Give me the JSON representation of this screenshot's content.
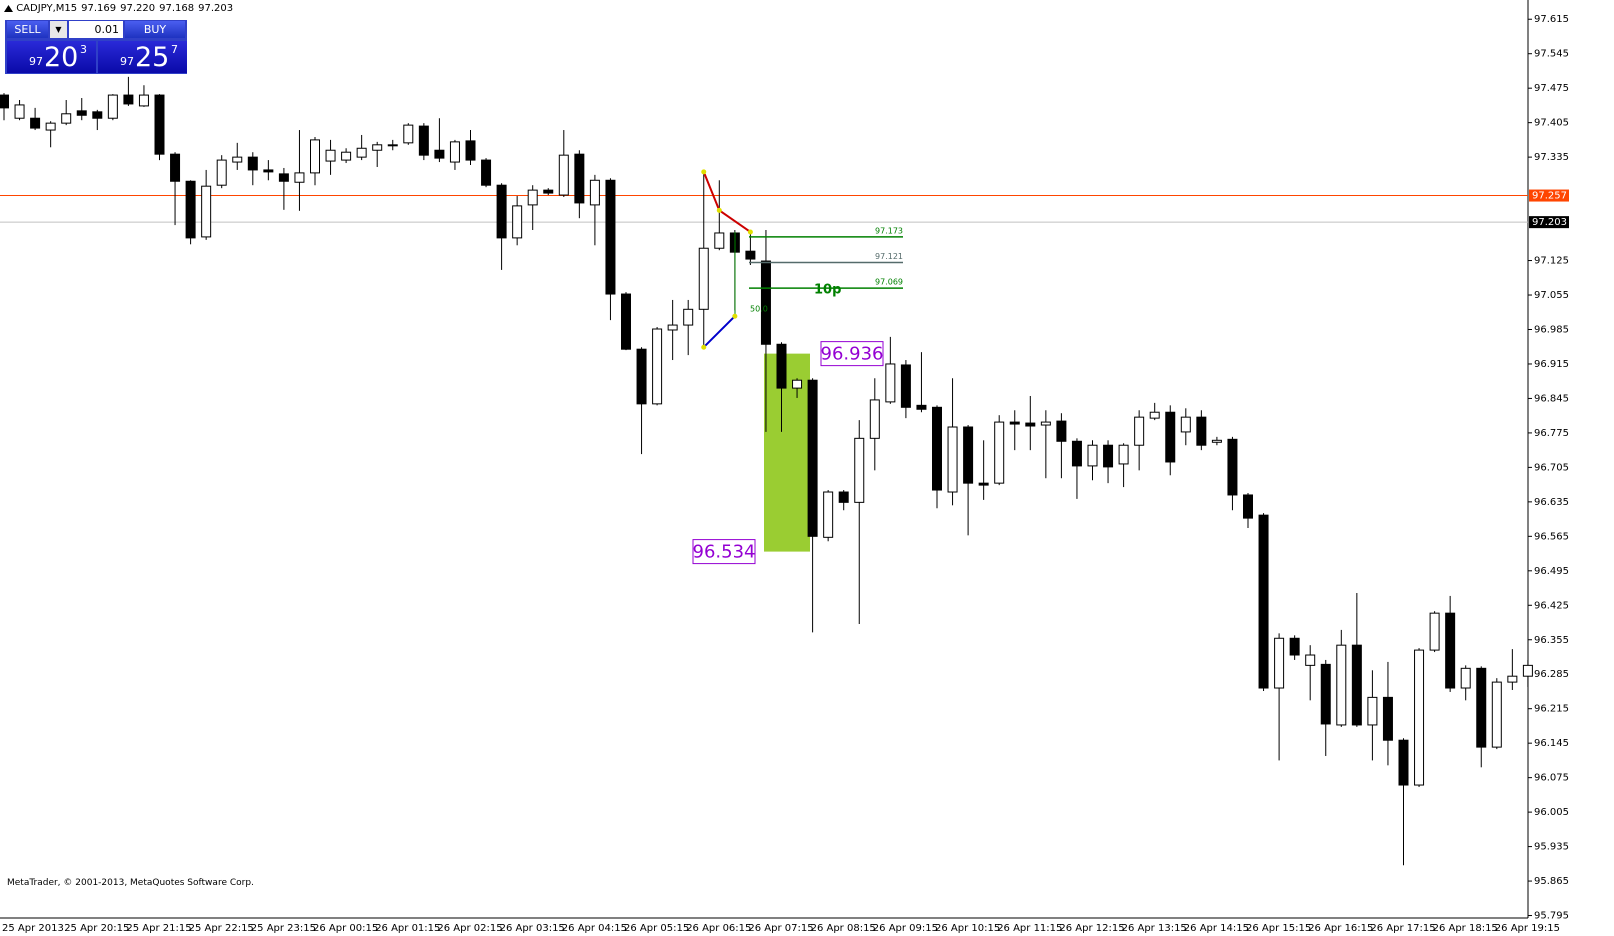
{
  "chart_data": {
    "type": "candlestick",
    "title": "CADJPY,M15",
    "quote": [
      "97.169",
      "97.220",
      "97.168",
      "97.203"
    ],
    "categories": [
      "25 Apr 2013",
      null,
      null,
      null,
      "25 Apr 20:15",
      null,
      null,
      null,
      "25 Apr 21:15",
      null,
      null,
      null,
      "25 Apr 22:15",
      null,
      null,
      null,
      "25 Apr 23:15",
      null,
      null,
      null,
      "26 Apr 00:15",
      null,
      null,
      null,
      "26 Apr 01:15",
      null,
      null,
      null,
      "26 Apr 02:15",
      null,
      null,
      null,
      "26 Apr 03:15",
      null,
      null,
      null,
      "26 Apr 04:15",
      null,
      null,
      null,
      "26 Apr 05:15",
      null,
      null,
      null,
      "26 Apr 06:15",
      null,
      null,
      null,
      "26 Apr 07:15",
      null,
      null,
      null,
      "26 Apr 08:15",
      null,
      null,
      null,
      "26 Apr 09:15",
      null,
      null,
      null,
      "26 Apr 10:15",
      null,
      null,
      null,
      "26 Apr 11:15",
      null,
      null,
      null,
      "26 Apr 12:15",
      null,
      null,
      null,
      "26 Apr 13:15",
      null,
      null,
      null,
      "26 Apr 14:15",
      null,
      null,
      null,
      "26 Apr 15:15",
      null,
      null,
      null,
      "26 Apr 16:15",
      null,
      null,
      null,
      "26 Apr 17:15",
      null,
      null,
      null,
      "26 Apr 18:15",
      null,
      null,
      null,
      "26 Apr 19:15",
      null,
      null
    ],
    "open": [
      97.461,
      97.414,
      97.414,
      97.39,
      97.404,
      97.429,
      97.427,
      97.414,
      97.461,
      97.439,
      97.461,
      97.341,
      97.286,
      97.173,
      97.278,
      97.325,
      97.335,
      97.309,
      97.301,
      97.284,
      97.303,
      97.327,
      97.329,
      97.335,
      97.349,
      97.358,
      97.364,
      97.398,
      97.349,
      97.325,
      97.368,
      97.329,
      97.278,
      97.171,
      97.238,
      97.268,
      97.258,
      97.341,
      97.238,
      97.288,
      97.057,
      96.945,
      96.834,
      96.984,
      96.994,
      97.026,
      97.15,
      97.181,
      97.144,
      97.124,
      96.955,
      96.866,
      96.882,
      96.563,
      96.655,
      96.634,
      96.764,
      96.838,
      96.913,
      96.831,
      96.827,
      96.655,
      96.787,
      96.673,
      96.673,
      96.797,
      96.795,
      96.791,
      96.799,
      96.758,
      96.708,
      96.75,
      96.712,
      96.75,
      96.805,
      96.817,
      96.777,
      96.807,
      96.756,
      96.762,
      96.649,
      96.608,
      96.257,
      96.358,
      96.303,
      96.305,
      96.182,
      96.344,
      96.182,
      96.238,
      96.151,
      96.06,
      96.334,
      96.409,
      96.257,
      96.297,
      96.137,
      96.269,
      96.281
    ],
    "high": [
      97.465,
      97.451,
      97.435,
      97.408,
      97.451,
      97.455,
      97.431,
      97.463,
      97.498,
      97.481,
      97.463,
      97.345,
      97.288,
      97.309,
      97.339,
      97.364,
      97.345,
      97.329,
      97.313,
      97.39,
      97.376,
      97.37,
      97.353,
      97.38,
      97.366,
      97.37,
      97.404,
      97.404,
      97.414,
      97.37,
      97.39,
      97.333,
      97.282,
      97.256,
      97.278,
      97.272,
      97.39,
      97.349,
      97.299,
      97.292,
      97.061,
      96.949,
      96.99,
      97.045,
      97.045,
      97.309,
      97.288,
      97.187,
      97.183,
      97.187,
      96.959,
      96.886,
      96.886,
      96.659,
      96.659,
      96.801,
      96.886,
      96.97,
      96.923,
      96.939,
      96.831,
      96.886,
      96.791,
      96.76,
      96.811,
      96.821,
      96.85,
      96.821,
      96.815,
      96.764,
      96.76,
      96.76,
      96.754,
      96.821,
      96.836,
      96.831,
      96.825,
      96.821,
      96.767,
      96.767,
      96.653,
      96.612,
      96.368,
      96.364,
      96.344,
      96.314,
      96.375,
      96.45,
      96.293,
      96.31,
      96.155,
      96.338,
      96.413,
      96.444,
      96.303,
      96.301,
      96.277,
      96.336,
      96.314
    ],
    "low": [
      97.41,
      97.41,
      97.39,
      97.355,
      97.4,
      97.41,
      97.39,
      97.41,
      97.439,
      97.437,
      97.329,
      97.197,
      97.158,
      97.167,
      97.272,
      97.309,
      97.278,
      97.288,
      97.228,
      97.226,
      97.278,
      97.299,
      97.323,
      97.329,
      97.315,
      97.349,
      97.36,
      97.329,
      97.325,
      97.309,
      97.319,
      97.274,
      97.106,
      97.156,
      97.187,
      97.258,
      97.254,
      97.211,
      97.156,
      97.004,
      96.943,
      96.732,
      96.831,
      96.923,
      96.933,
      96.953,
      97.146,
      97.024,
      97.116,
      96.777,
      96.777,
      96.846,
      96.37,
      96.555,
      96.618,
      96.387,
      96.699,
      96.834,
      96.805,
      96.817,
      96.622,
      96.628,
      96.567,
      96.639,
      96.669,
      96.74,
      96.74,
      96.683,
      96.683,
      96.641,
      96.679,
      96.673,
      96.665,
      96.699,
      96.801,
      96.689,
      96.75,
      96.74,
      96.75,
      96.618,
      96.582,
      96.251,
      96.11,
      96.314,
      96.232,
      96.119,
      96.178,
      96.178,
      96.11,
      96.1,
      95.897,
      96.056,
      96.33,
      96.249,
      96.232,
      96.096,
      96.133,
      96.253,
      96.259
    ],
    "close": [
      97.435,
      97.441,
      97.394,
      97.404,
      97.423,
      97.42,
      97.414,
      97.461,
      97.443,
      97.461,
      97.341,
      97.286,
      97.171,
      97.276,
      97.329,
      97.335,
      97.309,
      97.305,
      97.286,
      97.303,
      97.37,
      97.349,
      97.345,
      97.353,
      97.36,
      97.36,
      97.4,
      97.339,
      97.333,
      97.366,
      97.329,
      97.278,
      97.171,
      97.236,
      97.268,
      97.262,
      97.339,
      97.242,
      97.288,
      97.057,
      96.945,
      96.834,
      96.986,
      96.994,
      97.026,
      97.15,
      97.181,
      97.142,
      97.128,
      96.955,
      96.866,
      96.882,
      96.565,
      96.655,
      96.634,
      96.764,
      96.842,
      96.915,
      96.827,
      96.823,
      96.659,
      96.787,
      96.673,
      96.669,
      96.797,
      96.793,
      96.789,
      96.797,
      96.758,
      96.708,
      96.75,
      96.706,
      96.75,
      96.807,
      96.817,
      96.716,
      96.807,
      96.75,
      96.76,
      96.649,
      96.602,
      96.257,
      96.358,
      96.324,
      96.324,
      96.184,
      96.344,
      96.182,
      96.238,
      96.151,
      96.06,
      96.334,
      96.409,
      96.257,
      96.297,
      96.137,
      96.269,
      96.281,
      96.303
    ],
    "up_color": "#ffffff",
    "down_color": "#000000",
    "ylim": [
      95.79,
      97.65
    ],
    "yticks": [
      97.615,
      97.545,
      97.475,
      97.405,
      97.335,
      97.125,
      97.055,
      96.985,
      96.915,
      96.845,
      96.775,
      96.705,
      96.635,
      96.565,
      96.495,
      96.425,
      96.355,
      96.285,
      96.215,
      96.145,
      96.075,
      96.005,
      95.935,
      95.865,
      95.795
    ],
    "hlines": [
      {
        "value": 97.257,
        "color": "#ff4500"
      },
      {
        "value": 97.203,
        "color": "#c0c0c0"
      }
    ],
    "fibo_levels": [
      {
        "value": 97.173,
        "color": "#008000"
      },
      {
        "value": 97.121,
        "color": "#556b6b"
      },
      {
        "value": 97.069,
        "color": "#008000"
      }
    ],
    "fibo_note": "10p",
    "fibo_ratio": "50.0",
    "zigzag": [
      {
        "color": "#cc0000",
        "x": [
          45,
          46,
          48
        ],
        "values": [
          97.305,
          97.227,
          97.183
        ]
      },
      {
        "color": "#0000cc",
        "x": [
          45,
          47
        ],
        "values": [
          96.949,
          97.012
        ]
      }
    ],
    "zone": {
      "top": 96.936,
      "bottom": 96.534,
      "color": "#9acd32"
    }
  },
  "trade_panel": {
    "sell": "SELL",
    "buy": "BUY",
    "lot": "0.01",
    "sell_big": "97",
    "sell_main": "20",
    "sell_pip": "3",
    "buy_big": "97",
    "buy_main": "25",
    "buy_pip": "7"
  },
  "footer": "MetaTrader, © 2001-2013, MetaQuotes Software Corp."
}
